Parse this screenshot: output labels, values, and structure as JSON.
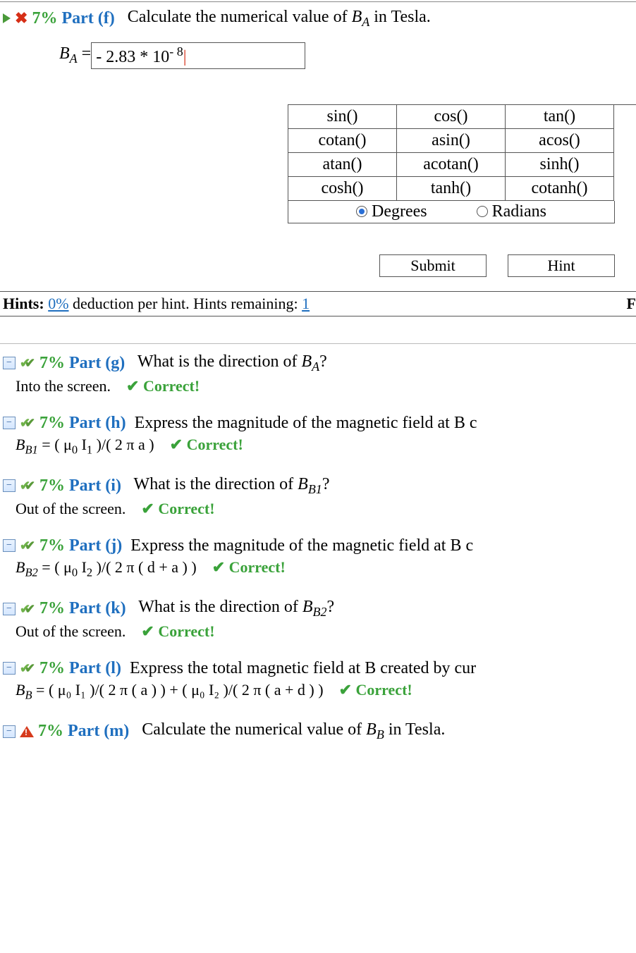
{
  "colors": {
    "green": "#3aa23a",
    "blue": "#1f6fbf",
    "red": "#d62f17"
  },
  "partF": {
    "pct": "7%",
    "label": "Part (f)",
    "question_prefix": "Calculate the numerical value of ",
    "var_base": "B",
    "var_sub": "A",
    "question_suffix": " in Tesla.",
    "answer_label_base": "B",
    "answer_label_sub": "A",
    "equals": " = ",
    "input_prefix": "- 2.83 * 10",
    "input_sup": "- 8"
  },
  "funcs": [
    [
      "sin()",
      "cos()",
      "tan()"
    ],
    [
      "cotan()",
      "asin()",
      "acos()"
    ],
    [
      "atan()",
      "acotan()",
      "sinh()"
    ],
    [
      "cosh()",
      "tanh()",
      "cotanh()"
    ]
  ],
  "mode": {
    "degrees": "Degrees",
    "radians": "Radians",
    "selected": "degrees"
  },
  "buttons": {
    "submit": "Submit",
    "hint": "Hint"
  },
  "hints": {
    "label": "Hints:",
    "deduction_pct": "0%",
    "mid": " deduction per hint. Hints remaining: ",
    "remaining": "1",
    "right_char": "F"
  },
  "parts": {
    "g": {
      "pct": "7%",
      "label": "Part (g)",
      "q_prefix": "What is the direction of ",
      "var_base": "B",
      "var_sub": "A",
      "q_suffix": "?",
      "answer": "Into the screen.",
      "status": "Correct!"
    },
    "h": {
      "pct": "7%",
      "label": "Part (h)",
      "q": "Express the magnitude of the magnetic field at B c",
      "formula_lhs_base": "B",
      "formula_lhs_sub": "B1",
      "formula_rhs_pre": " = ( μ",
      "mu_sub": "0",
      "formula_rhs_mid1": " I",
      "i_sub": "1",
      "formula_rhs_tail": " )/( 2 π a )",
      "status": "Correct!"
    },
    "i": {
      "pct": "7%",
      "label": "Part (i)",
      "q_prefix": "What is the direction of ",
      "var_base": "B",
      "var_sub": "B1",
      "q_suffix": "?",
      "answer": "Out of the screen.",
      "status": "Correct!"
    },
    "j": {
      "pct": "7%",
      "label": "Part (j)",
      "q": "Express the magnitude of the magnetic field at B c",
      "formula_lhs_base": "B",
      "formula_lhs_sub": "B2",
      "formula_rhs_pre": " = ( μ",
      "mu_sub": "0",
      "formula_rhs_mid1": " I",
      "i_sub": "2",
      "formula_rhs_tail": " )/( 2 π ( d + a ) )",
      "status": "Correct!"
    },
    "k": {
      "pct": "7%",
      "label": "Part (k)",
      "q_prefix": "What is the direction of ",
      "var_base": "B",
      "var_sub": "B2",
      "q_suffix": "?",
      "answer": "Out of the screen.",
      "status": "Correct!"
    },
    "l": {
      "pct": "7%",
      "label": "Part (l)",
      "q": "Express the total magnetic field at B created by cur",
      "formula_lhs_base": "B",
      "formula_lhs_sub": "B",
      "formula": " = ( μ₀ I₁ )/( 2 π ( a ) ) + ( μ₀ I₂ )/( 2 π ( a + d ) )",
      "status": "Correct!"
    },
    "m": {
      "pct": "7%",
      "label": "Part (m)",
      "q_prefix": "Calculate the numerical value of ",
      "var_base": "B",
      "var_sub": "B",
      "q_suffix": " in Tesla."
    }
  },
  "correct_check": "✔"
}
